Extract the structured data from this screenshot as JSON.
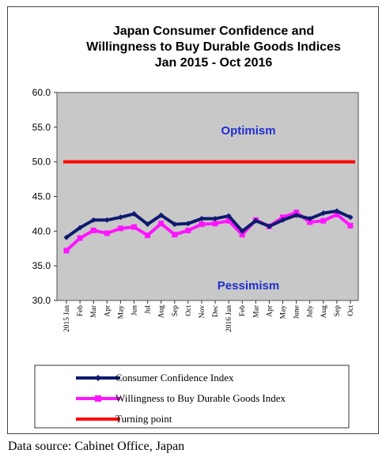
{
  "chart_data": {
    "type": "line",
    "title": [
      "Japan Consumer Confidence and",
      "Willingness to Buy Durable Goods Indices",
      "Jan 2015 - Oct 2016"
    ],
    "categories": [
      "2015 Jan",
      "Feb",
      "Mar",
      "Apr",
      "May",
      "Jun",
      "Jul",
      "Aug",
      "Sep",
      "Oct",
      "Nov",
      "Dec",
      "2016 Jan",
      "Feb",
      "Mar",
      "Apr",
      "May",
      "June",
      "July",
      "Aug",
      "Sep",
      "Oct"
    ],
    "ylim": [
      30.0,
      60.0
    ],
    "yticks": [
      "30.0",
      "35.0",
      "40.0",
      "45.0",
      "50.0",
      "55.0",
      "60.0"
    ],
    "series": [
      {
        "name": "Consumer Confidence Index",
        "color": "#0d1a6e",
        "values": [
          39.1,
          40.5,
          41.6,
          41.6,
          42.0,
          42.5,
          41.0,
          42.3,
          41.0,
          41.1,
          41.8,
          41.8,
          42.2,
          40.0,
          41.5,
          40.7,
          41.6,
          42.3,
          41.8,
          42.6,
          42.9,
          42.0
        ]
      },
      {
        "name": "Willingness to Buy Durable Goods Index",
        "color": "#ff14ff",
        "values": [
          37.2,
          39.0,
          40.1,
          39.7,
          40.4,
          40.6,
          39.4,
          41.1,
          39.5,
          40.1,
          41.0,
          41.1,
          41.5,
          39.5,
          41.6,
          40.7,
          42.0,
          42.7,
          41.3,
          41.5,
          42.4,
          40.8
        ]
      },
      {
        "name": "Turning point",
        "color": "#ff0000",
        "values": [
          50,
          50,
          50,
          50,
          50,
          50,
          50,
          50,
          50,
          50,
          50,
          50,
          50,
          50,
          50,
          50,
          50,
          50,
          50,
          50,
          50,
          50
        ]
      }
    ],
    "annotations": {
      "optimism": "Optimism",
      "pessimism": "Pessimism"
    },
    "grid": false,
    "legend": "bottom"
  },
  "source": "Data source: Cabinet Office, Japan"
}
